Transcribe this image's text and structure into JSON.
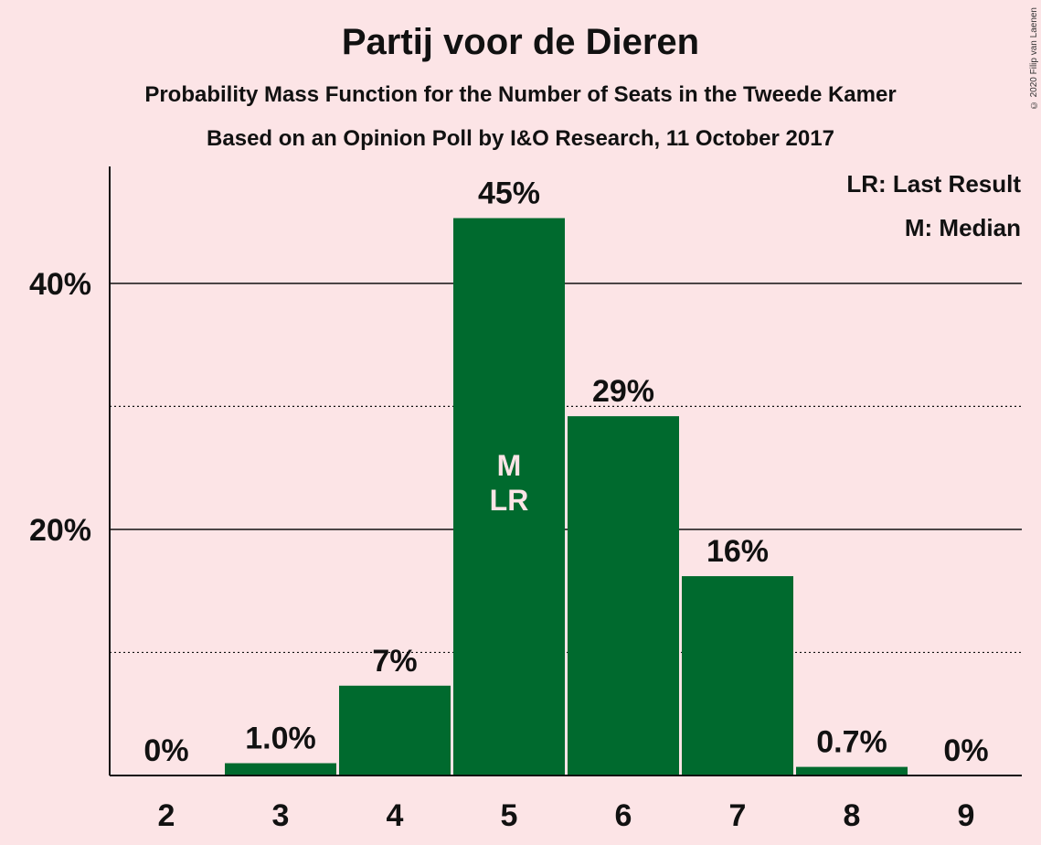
{
  "header": {
    "title": "Partij voor de Dieren",
    "subtitle": "Probability Mass Function for the Number of Seats in the Tweede Kamer",
    "subtitle2": "Based on an Opinion Poll by I&O Research, 11 October 2017",
    "copyright": "© 2020 Filip van Laenen"
  },
  "colors": {
    "background": "#fce4e6",
    "bar": "#006a2e",
    "text": "#111111"
  },
  "chart_data": {
    "type": "bar",
    "categories": [
      "2",
      "3",
      "4",
      "5",
      "6",
      "7",
      "8",
      "9"
    ],
    "values": [
      0,
      1.0,
      7.3,
      45.3,
      29.2,
      16.2,
      0.7,
      0
    ],
    "data_labels": [
      "0%",
      "1.0%",
      "7%",
      "45%",
      "29%",
      "16%",
      "0.7%",
      "0%"
    ],
    "ylim": [
      0,
      49.5
    ],
    "y_ticks": [
      {
        "value": 20,
        "label": "20%"
      },
      {
        "value": 40,
        "label": "40%"
      }
    ],
    "y_minor_gridlines": [
      10,
      30
    ],
    "bar_annotation": {
      "category": "5",
      "lines": [
        "M",
        "LR"
      ]
    },
    "legend": {
      "position": "top-right",
      "entries": [
        "LR: Last Result",
        "M: Median"
      ]
    },
    "grid": true
  }
}
